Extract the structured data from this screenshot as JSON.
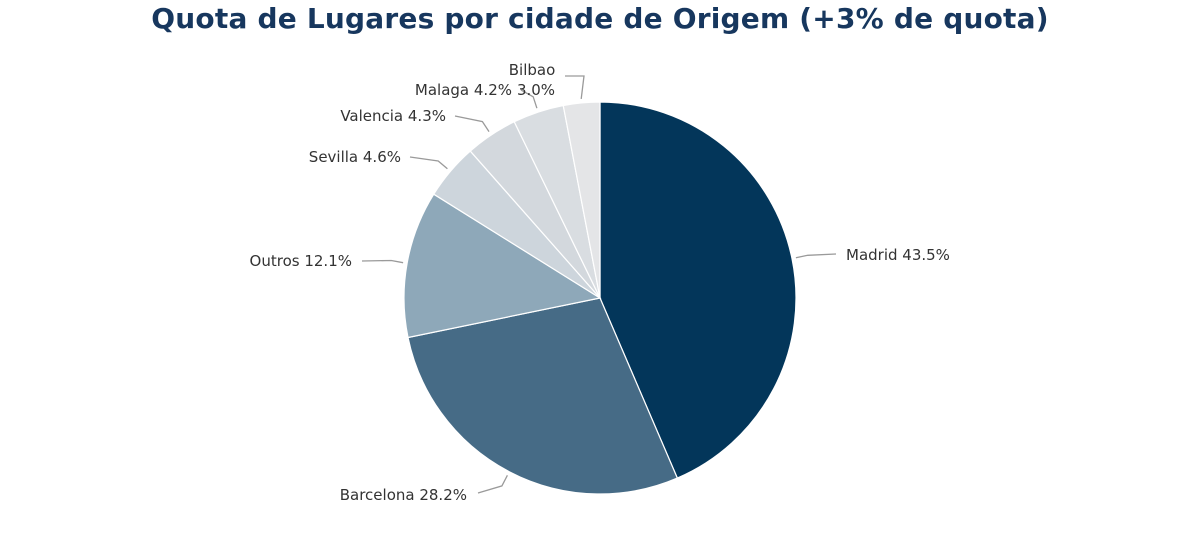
{
  "chart_data": {
    "type": "pie",
    "title": "Quota de Lugares por cidade de Origem (+3% de quota)",
    "slices": [
      {
        "label": "Madrid",
        "value": 43.5,
        "value_text": "43.5%",
        "color": "#03365a"
      },
      {
        "label": "Barcelona",
        "value": 28.2,
        "value_text": "28.2%",
        "color": "#466b86"
      },
      {
        "label": "Outros",
        "value": 12.1,
        "value_text": "12.1%",
        "color": "#8ea8b9"
      },
      {
        "label": "Sevilla",
        "value": 4.6,
        "value_text": "4.6%",
        "color": "#cdd5dc"
      },
      {
        "label": "Valencia",
        "value": 4.3,
        "value_text": "4.3%",
        "color": "#d3d8dd"
      },
      {
        "label": "Malaga",
        "value": 4.2,
        "value_text": "4.2%",
        "color": "#d9dde1"
      },
      {
        "label": "Bilbao",
        "value": 3.0,
        "value_text": "3.0%",
        "color": "#e4e5e7"
      }
    ],
    "start": "12 o'clock",
    "direction": "clockwise",
    "legend": "none"
  }
}
